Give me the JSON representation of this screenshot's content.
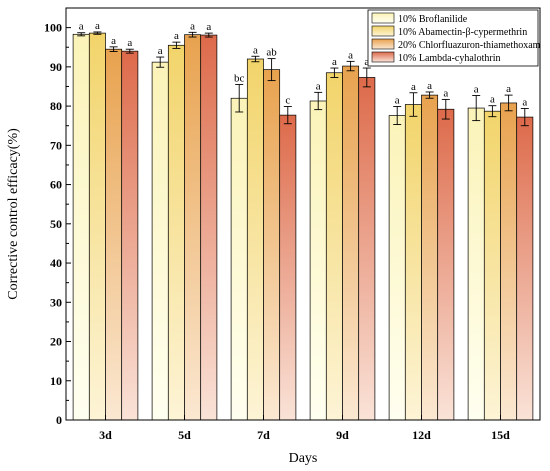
{
  "chart_data": {
    "type": "bar",
    "title": "",
    "xlabel": "Days",
    "ylabel": "Corrective control efficacy(%)",
    "categories": [
      "3d",
      "5d",
      "7d",
      "9d",
      "12d",
      "15d"
    ],
    "ylim": [
      0,
      105
    ],
    "yticks": [
      0,
      10,
      20,
      30,
      40,
      50,
      60,
      70,
      80,
      90,
      100
    ],
    "grid": false,
    "legend_position": "top-right",
    "error_bars": true,
    "series": [
      {
        "name": "10% Broflanilide",
        "color_top": "#fbf3b8",
        "color_bottom": "#fffff0",
        "values": [
          98.3,
          91.2,
          82.0,
          81.3,
          77.6,
          79.5
        ],
        "errors": [
          0.4,
          1.3,
          3.5,
          2.2,
          2.3,
          3.2
        ],
        "labels": [
          "a",
          "a",
          "bc",
          "a",
          "a",
          "a"
        ]
      },
      {
        "name": "10% Abamectin-β-cypermethrin",
        "color_top": "#f2d46a",
        "color_bottom": "#fdf4d6",
        "values": [
          98.6,
          95.5,
          92.0,
          88.5,
          80.4,
          78.7
        ],
        "errors": [
          0.3,
          0.8,
          0.7,
          1.2,
          3.0,
          1.4
        ],
        "labels": [
          "a",
          "a",
          "a",
          "a",
          "a",
          "a"
        ]
      },
      {
        "name": "20% Chlorfluazuron-thiamethoxam",
        "color_top": "#e8a24e",
        "color_bottom": "#fbe8d2",
        "values": [
          94.5,
          98.2,
          89.3,
          90.2,
          82.8,
          80.8
        ],
        "errors": [
          0.6,
          0.6,
          2.8,
          1.2,
          0.8,
          2.0
        ],
        "labels": [
          "a",
          "a",
          "ab",
          "a",
          "a",
          "a"
        ]
      },
      {
        "name": "10% Lambda-cyhalothrin",
        "color_top": "#dd6a4a",
        "color_bottom": "#fae3d8",
        "values": [
          94.0,
          98.1,
          77.7,
          87.3,
          79.2,
          77.2
        ],
        "errors": [
          0.5,
          0.5,
          2.2,
          2.4,
          2.5,
          2.2
        ],
        "labels": [
          "a",
          "a",
          "c",
          "a",
          "a",
          "a"
        ]
      }
    ]
  }
}
